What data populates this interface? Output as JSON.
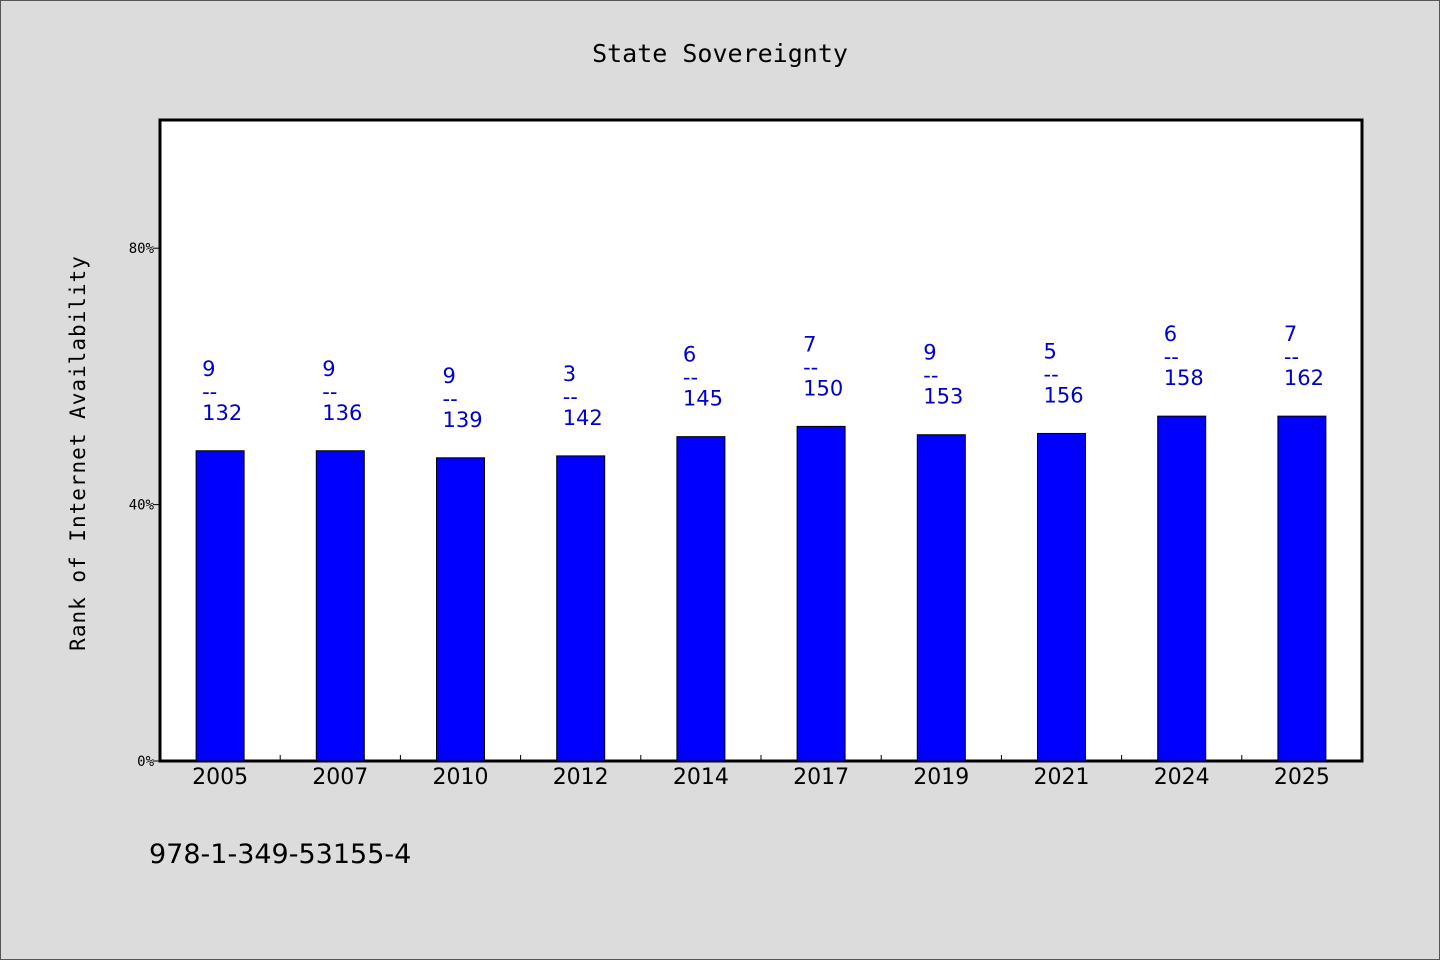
{
  "chart_data": {
    "type": "bar",
    "title": "State Sovereignty",
    "xlabel": "",
    "ylabel": "Rank of Internet Availability",
    "ylim": [
      0,
      1.0
    ],
    "yticks": [
      0,
      0.4,
      0.8
    ],
    "ytick_labels": [
      "0%",
      "40%",
      "80%"
    ],
    "grid": false,
    "bar_color": "#0000ff",
    "label_color": "#0000cc",
    "categories": [
      "2005",
      "2007",
      "2010",
      "2012",
      "2014",
      "2017",
      "2019",
      "2021",
      "2024",
      "2025"
    ],
    "values": [
      0.484,
      0.484,
      0.473,
      0.476,
      0.506,
      0.522,
      0.509,
      0.511,
      0.538,
      0.538
    ],
    "data_labels": [
      {
        "top": "9",
        "sep": "--",
        "bottom": "132"
      },
      {
        "top": "9",
        "sep": "--",
        "bottom": "136"
      },
      {
        "top": "9",
        "sep": "--",
        "bottom": "139"
      },
      {
        "top": "3",
        "sep": "--",
        "bottom": "142"
      },
      {
        "top": "6",
        "sep": "--",
        "bottom": "145"
      },
      {
        "top": "7",
        "sep": "--",
        "bottom": "150"
      },
      {
        "top": "9",
        "sep": "--",
        "bottom": "153"
      },
      {
        "top": "5",
        "sep": "--",
        "bottom": "156"
      },
      {
        "top": "6",
        "sep": "--",
        "bottom": "158"
      },
      {
        "top": "7",
        "sep": "--",
        "bottom": "162"
      }
    ]
  },
  "footnote": "978-1-349-53155-4"
}
